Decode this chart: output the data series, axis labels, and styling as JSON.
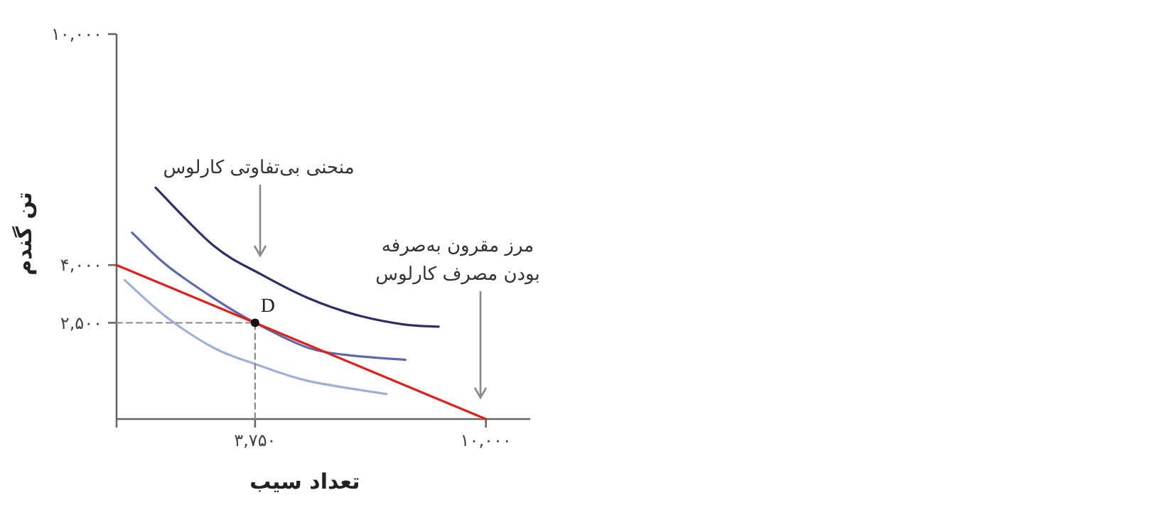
{
  "chart_data": {
    "type": "line",
    "xlabel": "تعداد سیب",
    "ylabel": "تن گندم",
    "xlim": [
      0,
      11200
    ],
    "ylim": [
      0,
      10000
    ],
    "xticks": [
      {
        "value": 0,
        "label": null
      },
      {
        "value": 3750,
        "label": "۳,۷۵۰"
      },
      {
        "value": 10000,
        "label": "۱۰,۰۰۰"
      }
    ],
    "yticks": [
      {
        "value": 2500,
        "label": "۲,۵۰۰"
      },
      {
        "value": 4000,
        "label": "۴,۰۰۰"
      },
      {
        "value": 10000,
        "label": "۱۰,۰۰۰"
      }
    ],
    "series": [
      {
        "color": "#2b2f66",
        "x": [
          1060,
          2630,
          3910,
          5190,
          6470,
          7750,
          8720
        ],
        "values": [
          6010,
          4500,
          3760,
          3140,
          2710,
          2460,
          2400
        ]
      },
      {
        "color": "#5a6aaa",
        "x": [
          420,
          1350,
          2630,
          3750,
          5190,
          6470,
          7820
        ],
        "values": [
          4840,
          4000,
          3140,
          2500,
          1850,
          1640,
          1540
        ]
      },
      {
        "color": "#9fb0d8",
        "x": [
          220,
          1350,
          2630,
          3780,
          5190,
          7310
        ],
        "values": [
          3610,
          2650,
          1850,
          1420,
          990,
          650
        ]
      },
      {
        "color": "#e0201b",
        "x": [
          0,
          10000
        ],
        "values": [
          4000,
          0
        ]
      },
      {
        "color": "#8a8a8a",
        "line_style": "dashed",
        "x": [
          0,
          3750,
          3750
        ],
        "values": [
          2500,
          2500,
          0
        ]
      },
      {
        "type": "scatter",
        "color": "#111111",
        "marker": "circle",
        "x": [
          3750
        ],
        "values": [
          2500
        ]
      }
    ],
    "annotations": [
      "منحنی بی‌تفاوتی کارلوس",
      "مرز مقرون به‌صرفه\nبودن مصرف کارلوس",
      {
        "text": "D",
        "x": 3750,
        "y": 2500
      }
    ]
  }
}
